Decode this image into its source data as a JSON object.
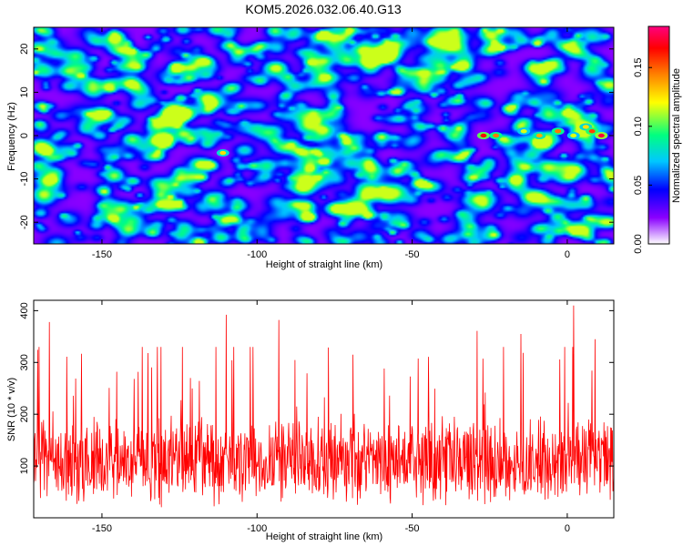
{
  "title": "KOM5.2026.032.06.40.G13",
  "chart_data": [
    {
      "type": "heatmap",
      "name": "spectrogram",
      "title": "KOM5.2026.032.06.40.G13",
      "xlabel": "Height of straight line (km)",
      "ylabel": "Frequency (Hz)",
      "xlim": [
        -172,
        15
      ],
      "ylim": [
        -25,
        25
      ],
      "xticks": [
        -150,
        -100,
        -50,
        0
      ],
      "yticks": [
        -20,
        -10,
        0,
        10,
        20
      ],
      "grid": false,
      "colorbar": {
        "label": "Normalized spectral amplitude",
        "range": [
          0,
          0.185
        ],
        "ticks": [
          "0.00",
          "0.05",
          "0.10",
          "0.15"
        ],
        "tick_values": [
          0.0,
          0.05,
          0.1,
          0.15
        ],
        "colors": [
          "#ffffff",
          "#8a00ff",
          "#0000ff",
          "#00c8ff",
          "#00ff80",
          "#ffff00",
          "#ff8000",
          "#ff0000",
          "#ff0080"
        ]
      },
      "hotspots": [
        {
          "x": -111,
          "y": -4,
          "amp": 0.13
        },
        {
          "x": -27,
          "y": 0,
          "amp": 0.17
        },
        {
          "x": -23,
          "y": 0,
          "amp": 0.15
        },
        {
          "x": -14,
          "y": 1,
          "amp": 0.12
        },
        {
          "x": -9,
          "y": 0,
          "amp": 0.14
        },
        {
          "x": -3,
          "y": 1,
          "amp": 0.15
        },
        {
          "x": 2,
          "y": 0,
          "amp": 0.12
        },
        {
          "x": 6,
          "y": 2,
          "amp": 0.13
        },
        {
          "x": 8,
          "y": 1,
          "amp": 0.16
        },
        {
          "x": 11,
          "y": 0,
          "amp": 0.18
        }
      ]
    },
    {
      "type": "line",
      "name": "snr",
      "xlabel": "Height of straight line (km)",
      "ylabel": "SNR (10 * v/v)",
      "xlim": [
        -172,
        15
      ],
      "ylim": [
        0,
        420
      ],
      "xticks": [
        -150,
        -100,
        -50,
        0
      ],
      "yticks": [
        100,
        200,
        300,
        400
      ],
      "grid": false,
      "series": [
        {
          "name": "SNR",
          "color": "#ff0000",
          "mean": 110,
          "typical_min": 20,
          "typical_max": 250,
          "max": 410
        }
      ],
      "peaks": [
        {
          "x": 2,
          "y": 410
        },
        {
          "x": -110,
          "y": 392
        },
        {
          "x": -93,
          "y": 382
        },
        {
          "x": -167,
          "y": 378
        },
        {
          "x": -29,
          "y": 361
        },
        {
          "x": -15,
          "y": 355
        },
        {
          "x": -131,
          "y": 330
        },
        {
          "x": 9,
          "y": 345
        }
      ]
    }
  ]
}
